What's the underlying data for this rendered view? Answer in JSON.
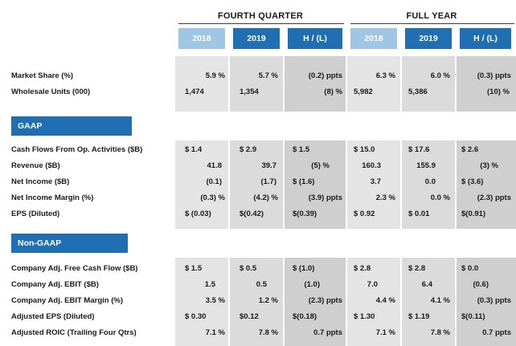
{
  "header": {
    "fourth_quarter": "FOURTH QUARTER",
    "full_year": "FULL YEAR",
    "columns": [
      "2018",
      "2019",
      "H / (L)",
      "2018",
      "2019",
      "H / (L)"
    ]
  },
  "colors": {
    "col_light": "#e4e4e4",
    "col_mid": "#dbdbdb",
    "col_dark": "#cfcfcf",
    "band": "#eef2f7",
    "hdr_light": "#9fc6e4",
    "hdr_dark": "#1f6fb2"
  },
  "sections": {
    "gaap": "GAAP",
    "non_gaap": "Non-GAAP"
  },
  "rows": [
    {
      "label": "Market Share (%)",
      "cells": [
        "5.9 %",
        "5.7 %",
        "(0.2) ppts",
        "6.3 %",
        "6.0 %",
        "(0.3) ppts"
      ]
    },
    {
      "label": "Wholesale Units (000)",
      "cells": [
        "1,474",
        "1,354",
        "(8) %",
        "5,982",
        "5,386",
        "(10) %"
      ]
    },
    {
      "label": "Cash Flows From Op. Activities ($B)",
      "cells": [
        "$ 1.4",
        "$ 2.9",
        "$ 1.5",
        "$ 15.0",
        "$ 17.6",
        "$ 2.6"
      ]
    },
    {
      "label": "Revenue ($B)",
      "cells": [
        "41.8",
        "39.7",
        "(5) %",
        "160.3",
        "155.9",
        "(3) %"
      ]
    },
    {
      "label": "Net Income ($B)",
      "cells": [
        "(0.1)",
        "(1.7)",
        "$ (1.6)",
        "3.7",
        "0.0",
        "$ (3.6)"
      ]
    },
    {
      "label": "Net Income Margin (%)",
      "cells": [
        "(0.3) %",
        "(4.2) %",
        "(3.9) ppts",
        "2.3 %",
        "0.0 %",
        "(2.3) ppts"
      ]
    },
    {
      "label": "EPS (Diluted)",
      "cells": [
        "$ (0.03)",
        "$(0.42)",
        "$(0.39)",
        "$ 0.92",
        "$ 0.01",
        "$(0.91)"
      ]
    },
    {
      "label": "Company Adj. Free Cash Flow ($B)",
      "cells": [
        "$ 1.5",
        "$ 0.5",
        "$ (1.0)",
        "$ 2.8",
        "$ 2.8",
        "$ 0.0"
      ]
    },
    {
      "label": "Company Adj. EBIT ($B)",
      "cells": [
        "1.5",
        "0.5",
        "(1.0)",
        "7.0",
        "6.4",
        "(0.6)"
      ]
    },
    {
      "label": "Company Adj. EBIT Margin (%)",
      "cells": [
        "3.5 %",
        "1.2 %",
        "(2.3) ppts",
        "4.4 %",
        "4.1 %",
        "(0.3) ppts"
      ]
    },
    {
      "label": "Adjusted EPS (Diluted)",
      "cells": [
        "$ 0.30",
        "$0.12",
        "$(0.18)",
        "$ 1.30",
        "$ 1.19",
        "$(0.11)"
      ]
    },
    {
      "label": "Adjusted ROIC (Trailing Four Qtrs)",
      "cells": [
        "7.1 %",
        "7.8 %",
        "0.7 ppts",
        "7.1 %",
        "7.8 %",
        "0.7 ppts"
      ]
    }
  ]
}
